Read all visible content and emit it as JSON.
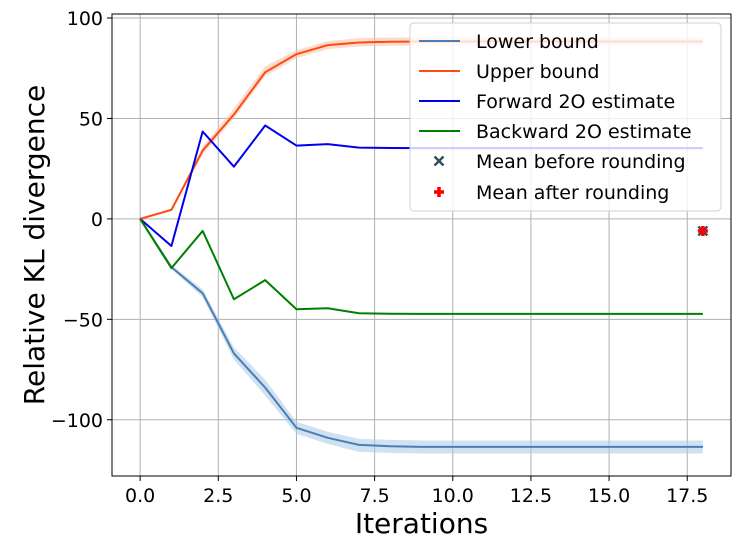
{
  "chart_data": {
    "type": "line",
    "xlabel": "Iterations",
    "ylabel": "Relative KL divergence",
    "xlim": [
      -0.9,
      18.9
    ],
    "ylim": [
      -128,
      102
    ],
    "grid": true,
    "legend_position": "top-right",
    "x_ticks": [
      0,
      2.5,
      5,
      7.5,
      10,
      12.5,
      15,
      17.5
    ],
    "x_tick_labels": [
      "0.0",
      "2.5",
      "5.0",
      "7.5",
      "10.0",
      "12.5",
      "15.0",
      "17.5"
    ],
    "y_ticks": [
      100,
      50,
      0,
      -50,
      -100
    ],
    "y_tick_labels": [
      "100",
      "50",
      "0",
      "−50",
      "−100"
    ],
    "x": [
      0,
      1,
      2,
      3,
      4,
      5,
      6,
      7,
      8,
      9,
      10,
      11,
      12,
      13,
      14,
      15,
      16,
      17,
      18
    ],
    "series": [
      {
        "name": "Lower bound",
        "color": "#4a7fb5",
        "values": [
          0,
          -24,
          -37,
          -67,
          -84,
          -104,
          -109,
          -112.5,
          -113.2,
          -113.5,
          -113.5,
          -113.5,
          -113.5,
          -113.5,
          -113.5,
          -113.5,
          -113.5,
          -113.5,
          -113.5
        ],
        "band_lower": [
          0,
          -25,
          -39,
          -70,
          -88,
          -107,
          -112,
          -116,
          -116.5,
          -116.8,
          -116.8,
          -116.8,
          -116.8,
          -116.8,
          -116.8,
          -116.8,
          -116.8,
          -116.8,
          -116.8
        ],
        "band_upper": [
          0,
          -23,
          -35,
          -64,
          -80,
          -101,
          -106,
          -109.5,
          -110,
          -110.3,
          -110.3,
          -110.3,
          -110.3,
          -110.3,
          -110.3,
          -110.3,
          -110.3,
          -110.3,
          -110.3
        ],
        "band_color": "#aac8e6"
      },
      {
        "name": "Upper bound",
        "color": "#ff4a10",
        "values": [
          0,
          4.5,
          34,
          52,
          73,
          82,
          86.5,
          87.8,
          88.2,
          88.3,
          88.3,
          88.3,
          88.3,
          88.3,
          88.3,
          88.3,
          88.3,
          88.3,
          88.3
        ],
        "band_lower": [
          0,
          3.8,
          32,
          50,
          71,
          80,
          84.5,
          85.8,
          86.2,
          86.3,
          86.3,
          86.3,
          86.3,
          86.3,
          86.3,
          86.3,
          86.3,
          86.3,
          86.3
        ],
        "band_upper": [
          0,
          5.2,
          36,
          55,
          76,
          84,
          88.5,
          90,
          90.3,
          90.5,
          90.5,
          90.5,
          90.5,
          90.5,
          90.5,
          90.5,
          90.5,
          90.5,
          90.5
        ],
        "band_color": "#f9c0a8"
      },
      {
        "name": "Forward 2O estimate",
        "color": "#0000ee",
        "values": [
          0,
          -13.5,
          43.5,
          26,
          46.5,
          36.5,
          37.2,
          35.5,
          35.3,
          35.2,
          35.2,
          35.2,
          35.2,
          35.2,
          35.2,
          35.2,
          35.2,
          35.2,
          35.2
        ]
      },
      {
        "name": "Backward 2O estimate",
        "color": "#008000",
        "values": [
          0,
          -24.5,
          -6,
          -40,
          -30.5,
          -45,
          -44.5,
          -47,
          -47.2,
          -47.3,
          -47.3,
          -47.3,
          -47.3,
          -47.3,
          -47.3,
          -47.3,
          -47.3,
          -47.3,
          -47.3
        ]
      }
    ],
    "markers": [
      {
        "name": "Mean before rounding",
        "symbol": "x",
        "color": "#2f4f5f",
        "x": 18,
        "y": -6
      },
      {
        "name": "Mean after rounding",
        "symbol": "plus",
        "color": "#ff0000",
        "x": 18,
        "y": -6
      }
    ]
  }
}
